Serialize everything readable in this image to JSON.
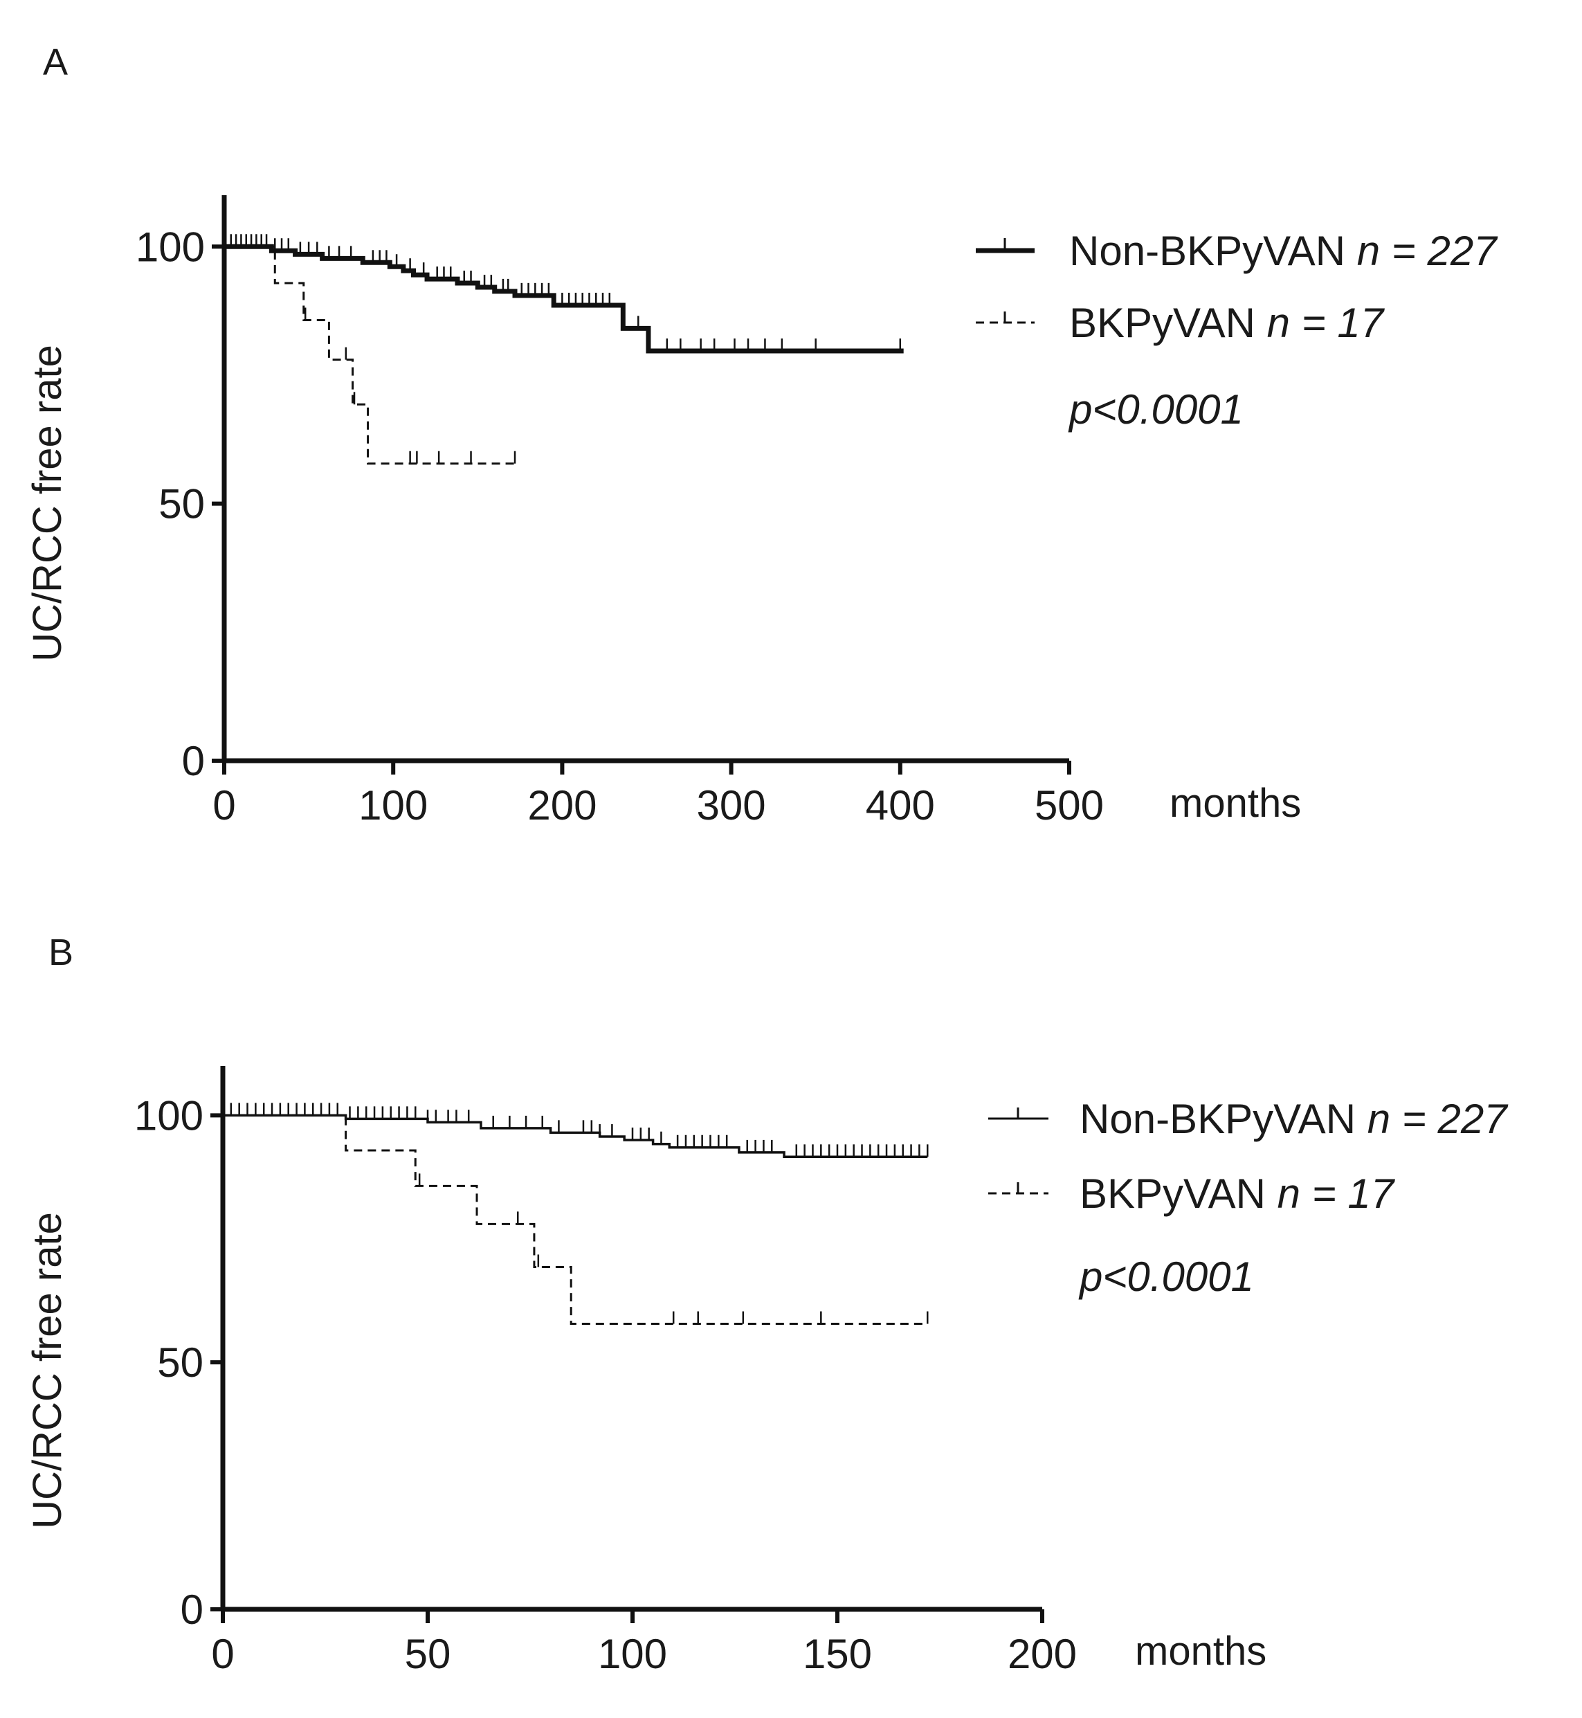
{
  "chart_data": [
    {
      "panel_label": "A",
      "type": "line",
      "subtype": "kaplan-meier",
      "xlabel": "months",
      "ylabel": "UC/RCC free rate",
      "xlim": [
        0,
        500
      ],
      "ylim": [
        0,
        110
      ],
      "xticks": [
        "0",
        "100",
        "200",
        "300",
        "400",
        "500"
      ],
      "yticks": [
        "0",
        "50",
        "100"
      ],
      "annotation": "p<0.0001",
      "series": [
        {
          "name": "Non-BKPyVAN",
          "n_label": "n = 227",
          "style": "solid-thick",
          "steps": [
            [
              0,
              100
            ],
            [
              28,
              99.2
            ],
            [
              42,
              98.5
            ],
            [
              58,
              97.7
            ],
            [
              82,
              96.9
            ],
            [
              98,
              96.1
            ],
            [
              106,
              95.3
            ],
            [
              112,
              94.5
            ],
            [
              120,
              93.7
            ],
            [
              138,
              92.9
            ],
            [
              150,
              92.1
            ],
            [
              160,
              91.3
            ],
            [
              172,
              90.5
            ],
            [
              195,
              88.6
            ],
            [
              236,
              84.1
            ],
            [
              251,
              79.7
            ],
            [
              402,
              79.7
            ]
          ],
          "censored_x": [
            4,
            7,
            10,
            13,
            16,
            19,
            22,
            25,
            30,
            34,
            38,
            45,
            50,
            55,
            62,
            68,
            75,
            88,
            92,
            96,
            102,
            110,
            118,
            126,
            130,
            134,
            142,
            146,
            154,
            158,
            165,
            168,
            176,
            180,
            184,
            188,
            192,
            200,
            204,
            208,
            212,
            216,
            220,
            224,
            228,
            245,
            262,
            270,
            282,
            290,
            302,
            310,
            320,
            330,
            350,
            400
          ]
        },
        {
          "name": "BKPyVAN",
          "n_label": "n = 17",
          "style": "dashed",
          "steps": [
            [
              0,
              100
            ],
            [
              30,
              92.9
            ],
            [
              47,
              85.7
            ],
            [
              62,
              78
            ],
            [
              76,
              69.3
            ],
            [
              85,
              57.8
            ],
            [
              172,
              57.8
            ]
          ],
          "censored_x": [
            48,
            72,
            77,
            110,
            114,
            127,
            146,
            172
          ]
        }
      ]
    },
    {
      "panel_label": "B",
      "type": "line",
      "subtype": "kaplan-meier",
      "xlabel": "months",
      "ylabel": "UC/RCC free rate",
      "xlim": [
        0,
        200
      ],
      "ylim": [
        0,
        110
      ],
      "xticks": [
        "0",
        "50",
        "100",
        "150",
        "200"
      ],
      "yticks": [
        "0",
        "50",
        "100"
      ],
      "annotation": "p<0.0001",
      "series": [
        {
          "name": "Non-BKPyVAN",
          "n_label": "n = 227",
          "style": "solid",
          "steps": [
            [
              0,
              100
            ],
            [
              30,
              99.3
            ],
            [
              50,
              98.6
            ],
            [
              63,
              97.4
            ],
            [
              80,
              96.5
            ],
            [
              92,
              95.7
            ],
            [
              98,
              95
            ],
            [
              105,
              94.2
            ],
            [
              109,
              93.5
            ],
            [
              126,
              92.5
            ],
            [
              137,
              91.6
            ],
            [
              172,
              91.6
            ]
          ],
          "censored_x": [
            2,
            4,
            6,
            8,
            10,
            12,
            14,
            16,
            18,
            20,
            22,
            24,
            26,
            28,
            31,
            33,
            35,
            37,
            39,
            41,
            43,
            45,
            47,
            50,
            52,
            55,
            57,
            60,
            66,
            70,
            74,
            78,
            82,
            88,
            90,
            92,
            95,
            100,
            102,
            104,
            107,
            111,
            113,
            115,
            117,
            119,
            121,
            123,
            128,
            130,
            132,
            134,
            140,
            142,
            144,
            146,
            148,
            150,
            152,
            154,
            156,
            158,
            160,
            162,
            164,
            166,
            168,
            170,
            172
          ]
        },
        {
          "name": "BKPyVAN",
          "n_label": "n = 17",
          "style": "dashed",
          "steps": [
            [
              0,
              100
            ],
            [
              30,
              92.9
            ],
            [
              47,
              85.7
            ],
            [
              62,
              78
            ],
            [
              76,
              69.3
            ],
            [
              85,
              57.8
            ],
            [
              172,
              57.8
            ]
          ],
          "censored_x": [
            48,
            72,
            77,
            110,
            116,
            127,
            146,
            172
          ]
        }
      ]
    }
  ]
}
